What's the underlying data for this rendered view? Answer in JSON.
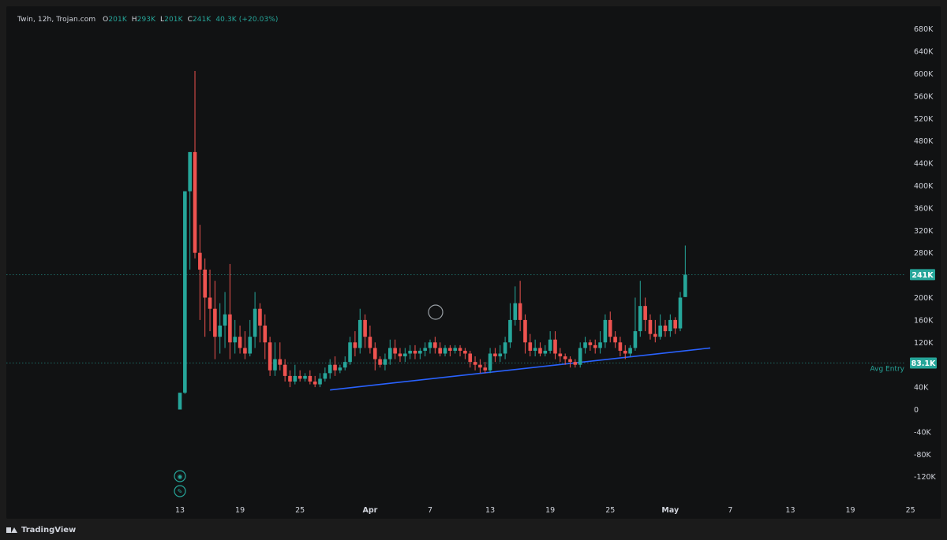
{
  "legend": {
    "symbol": "Twin, 12h, Trojan.com",
    "open_label": "O",
    "open": "201K",
    "high_label": "H",
    "high": "293K",
    "low_label": "L",
    "low": "201K",
    "close_label": "C",
    "close": "241K",
    "change": "40.3K (+20.03%)"
  },
  "price_badge": {
    "text": "241K",
    "color": "#26a69a"
  },
  "avg_entry": {
    "label": "Avg Entry",
    "badge": "83.1K",
    "color": "#26a69a"
  },
  "brand": "TradingView",
  "colors": {
    "up": "#26a69a",
    "down": "#ef5350",
    "trendline": "#2962ff",
    "background": "#111213"
  },
  "chart_data": {
    "type": "candlestick",
    "interval": "12h",
    "title": "Twin, 12h, Trojan.com",
    "ylim": [
      -150000,
      700000
    ],
    "y_ticks": [
      680000,
      640000,
      600000,
      560000,
      520000,
      480000,
      440000,
      400000,
      360000,
      320000,
      280000,
      240000,
      200000,
      160000,
      120000,
      80000,
      40000,
      0,
      -40000,
      -80000,
      -120000
    ],
    "y_tick_labels": [
      "680K",
      "640K",
      "600K",
      "560K",
      "520K",
      "480K",
      "440K",
      "400K",
      "360K",
      "320K",
      "280K",
      "240K",
      "200K",
      "160K",
      "120K",
      "80K",
      "40K",
      "0",
      "-40K",
      "-80K",
      "-120K"
    ],
    "x_labels": [
      {
        "text": "13",
        "bar": 0,
        "bold": false
      },
      {
        "text": "19",
        "bar": 12,
        "bold": false
      },
      {
        "text": "25",
        "bar": 24,
        "bold": false
      },
      {
        "text": "Apr",
        "bar": 38,
        "bold": true
      },
      {
        "text": "7",
        "bar": 50,
        "bold": false
      },
      {
        "text": "13",
        "bar": 62,
        "bold": false
      },
      {
        "text": "19",
        "bar": 74,
        "bold": false
      },
      {
        "text": "25",
        "bar": 86,
        "bold": false
      },
      {
        "text": "May",
        "bar": 98,
        "bold": true
      },
      {
        "text": "7",
        "bar": 110,
        "bold": false
      },
      {
        "text": "13",
        "bar": 122,
        "bold": false
      },
      {
        "text": "19",
        "bar": 134,
        "bold": false
      },
      {
        "text": "25",
        "bar": 146,
        "bold": false
      }
    ],
    "horizontal_lines": [
      {
        "name": "last-price",
        "value": 241000
      },
      {
        "name": "avg-entry",
        "value": 83100
      }
    ],
    "trendline": {
      "from": {
        "bar": 30,
        "value": 35000
      },
      "to": {
        "bar": 106,
        "value": 110000
      }
    },
    "candles": [
      [
        0,
        30000,
        0,
        30000
      ],
      [
        30000,
        390000,
        28000,
        390000
      ],
      [
        390000,
        460000,
        250000,
        460000
      ],
      [
        460000,
        280000,
        270000,
        605000
      ],
      [
        280000,
        250000,
        160000,
        330000
      ],
      [
        250000,
        200000,
        130000,
        270000
      ],
      [
        200000,
        180000,
        140000,
        250000
      ],
      [
        180000,
        130000,
        90000,
        230000
      ],
      [
        130000,
        150000,
        100000,
        190000
      ],
      [
        150000,
        170000,
        110000,
        210000
      ],
      [
        170000,
        120000,
        90000,
        260000
      ],
      [
        120000,
        130000,
        100000,
        160000
      ],
      [
        130000,
        110000,
        100000,
        150000
      ],
      [
        110000,
        100000,
        90000,
        140000
      ],
      [
        100000,
        130000,
        95000,
        160000
      ],
      [
        130000,
        180000,
        110000,
        210000
      ],
      [
        180000,
        150000,
        120000,
        190000
      ],
      [
        150000,
        120000,
        90000,
        170000
      ],
      [
        120000,
        70000,
        60000,
        130000
      ],
      [
        70000,
        90000,
        60000,
        120000
      ],
      [
        90000,
        80000,
        70000,
        120000
      ],
      [
        80000,
        60000,
        50000,
        90000
      ],
      [
        60000,
        50000,
        40000,
        70000
      ],
      [
        50000,
        60000,
        45000,
        80000
      ],
      [
        60000,
        55000,
        50000,
        70000
      ],
      [
        55000,
        60000,
        50000,
        65000
      ],
      [
        60000,
        50000,
        45000,
        70000
      ],
      [
        50000,
        45000,
        40000,
        60000
      ],
      [
        45000,
        55000,
        40000,
        65000
      ],
      [
        55000,
        65000,
        50000,
        75000
      ],
      [
        65000,
        80000,
        55000,
        90000
      ],
      [
        80000,
        70000,
        60000,
        95000
      ],
      [
        70000,
        75000,
        65000,
        80000
      ],
      [
        75000,
        85000,
        70000,
        95000
      ],
      [
        85000,
        120000,
        80000,
        130000
      ],
      [
        120000,
        110000,
        95000,
        140000
      ],
      [
        110000,
        160000,
        100000,
        180000
      ],
      [
        160000,
        130000,
        110000,
        170000
      ],
      [
        130000,
        110000,
        100000,
        150000
      ],
      [
        110000,
        90000,
        70000,
        120000
      ],
      [
        90000,
        80000,
        75000,
        95000
      ],
      [
        80000,
        90000,
        70000,
        100000
      ],
      [
        90000,
        110000,
        80000,
        125000
      ],
      [
        110000,
        100000,
        90000,
        125000
      ],
      [
        100000,
        95000,
        85000,
        110000
      ],
      [
        95000,
        100000,
        85000,
        110000
      ],
      [
        100000,
        105000,
        90000,
        115000
      ],
      [
        105000,
        100000,
        90000,
        115000
      ],
      [
        100000,
        105000,
        90000,
        110000
      ],
      [
        105000,
        110000,
        95000,
        120000
      ],
      [
        110000,
        120000,
        100000,
        125000
      ],
      [
        120000,
        110000,
        100000,
        130000
      ],
      [
        110000,
        100000,
        95000,
        120000
      ],
      [
        100000,
        110000,
        95000,
        115000
      ],
      [
        110000,
        105000,
        95000,
        115000
      ],
      [
        105000,
        110000,
        100000,
        115000
      ],
      [
        110000,
        105000,
        95000,
        115000
      ],
      [
        105000,
        100000,
        90000,
        110000
      ],
      [
        100000,
        85000,
        75000,
        105000
      ],
      [
        85000,
        80000,
        70000,
        95000
      ],
      [
        80000,
        75000,
        65000,
        90000
      ],
      [
        75000,
        70000,
        65000,
        85000
      ],
      [
        70000,
        100000,
        65000,
        110000
      ],
      [
        100000,
        95000,
        85000,
        110000
      ],
      [
        95000,
        100000,
        85000,
        115000
      ],
      [
        100000,
        120000,
        90000,
        130000
      ],
      [
        120000,
        160000,
        110000,
        190000
      ],
      [
        160000,
        190000,
        150000,
        220000
      ],
      [
        190000,
        160000,
        140000,
        230000
      ],
      [
        160000,
        120000,
        100000,
        170000
      ],
      [
        120000,
        105000,
        95000,
        135000
      ],
      [
        105000,
        110000,
        95000,
        125000
      ],
      [
        110000,
        100000,
        95000,
        120000
      ],
      [
        100000,
        105000,
        95000,
        115000
      ],
      [
        105000,
        125000,
        100000,
        140000
      ],
      [
        125000,
        100000,
        90000,
        140000
      ],
      [
        100000,
        95000,
        85000,
        110000
      ],
      [
        95000,
        90000,
        80000,
        100000
      ],
      [
        90000,
        85000,
        75000,
        95000
      ],
      [
        85000,
        80000,
        75000,
        90000
      ],
      [
        80000,
        110000,
        75000,
        120000
      ],
      [
        110000,
        120000,
        100000,
        130000
      ],
      [
        120000,
        115000,
        105000,
        125000
      ],
      [
        115000,
        110000,
        100000,
        125000
      ],
      [
        110000,
        120000,
        100000,
        140000
      ],
      [
        120000,
        160000,
        110000,
        170000
      ],
      [
        160000,
        130000,
        120000,
        175000
      ],
      [
        130000,
        120000,
        110000,
        140000
      ],
      [
        120000,
        105000,
        95000,
        130000
      ],
      [
        105000,
        100000,
        90000,
        115000
      ],
      [
        100000,
        110000,
        95000,
        115000
      ],
      [
        110000,
        140000,
        105000,
        200000
      ],
      [
        140000,
        185000,
        130000,
        230000
      ],
      [
        185000,
        160000,
        140000,
        200000
      ],
      [
        160000,
        135000,
        125000,
        170000
      ],
      [
        135000,
        130000,
        120000,
        160000
      ],
      [
        130000,
        150000,
        125000,
        170000
      ],
      [
        150000,
        140000,
        130000,
        160000
      ],
      [
        140000,
        160000,
        130000,
        170000
      ],
      [
        160000,
        145000,
        135000,
        165000
      ],
      [
        145000,
        200000,
        140000,
        210000
      ],
      [
        201000,
        241000,
        201000,
        293000
      ]
    ]
  }
}
